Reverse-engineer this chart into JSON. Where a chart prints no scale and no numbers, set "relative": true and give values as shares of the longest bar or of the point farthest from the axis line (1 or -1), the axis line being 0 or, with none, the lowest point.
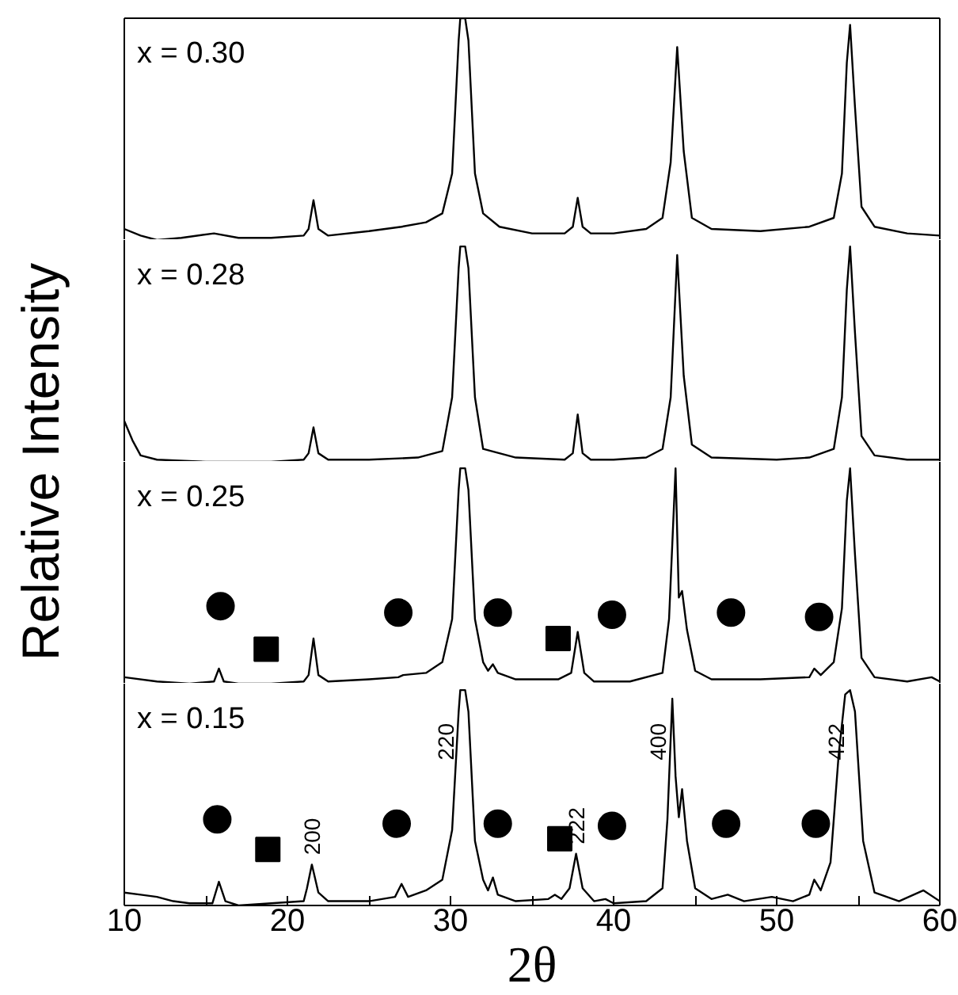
{
  "chart_data": [
    {
      "type": "line",
      "title": "x = 0.30",
      "relative": true,
      "xlim": [
        10,
        60
      ],
      "tick_labels": false,
      "series": [
        {
          "type": "line",
          "color": "#000000",
          "x": [
            10,
            11,
            12,
            13.5,
            15.5,
            17,
            19,
            21,
            21.3,
            21.6,
            21.9,
            22.5,
            25,
            27,
            28.5,
            29.5,
            30.1,
            30.5,
            30.6,
            30.9,
            31.1,
            31.5,
            32,
            33,
            35,
            37,
            37.5,
            37.8,
            38.1,
            38.6,
            40,
            42,
            43,
            43.5,
            43.9,
            44.3,
            44.8,
            46,
            49,
            52,
            53.5,
            54,
            54.3,
            54.5,
            54.8,
            55.2,
            56,
            58,
            60
          ],
          "values": [
            0.05,
            0.02,
            0,
            0.01,
            0.03,
            0.01,
            0.01,
            0.02,
            0.05,
            0.18,
            0.05,
            0.02,
            0.04,
            0.06,
            0.08,
            0.12,
            0.3,
            0.9,
            1,
            1,
            0.9,
            0.3,
            0.12,
            0.06,
            0.03,
            0.03,
            0.06,
            0.19,
            0.06,
            0.03,
            0.03,
            0.05,
            0.1,
            0.35,
            0.87,
            0.4,
            0.1,
            0.05,
            0.04,
            0.06,
            0.1,
            0.3,
            0.8,
            0.97,
            0.6,
            0.15,
            0.06,
            0.03,
            0.02
          ]
        }
      ]
    },
    {
      "type": "line",
      "title": "x = 0.28",
      "relative": true,
      "xlim": [
        10,
        60
      ],
      "tick_labels": false,
      "series": [
        {
          "type": "line",
          "color": "#000000",
          "x": [
            10,
            10.5,
            11,
            12,
            15,
            19,
            21,
            21.3,
            21.6,
            21.9,
            22.5,
            25,
            28,
            29.5,
            30.1,
            30.5,
            30.6,
            30.9,
            31.1,
            31.5,
            32,
            34,
            37,
            37.5,
            37.8,
            38.1,
            38.6,
            40,
            42,
            43,
            43.5,
            43.9,
            44.3,
            44.8,
            46,
            50,
            52,
            53.5,
            54,
            54.3,
            54.5,
            54.8,
            55.2,
            56,
            58,
            60
          ],
          "values": [
            0.19,
            0.1,
            0.03,
            0.01,
            0,
            0,
            0.01,
            0.04,
            0.16,
            0.04,
            0.01,
            0.01,
            0.02,
            0.05,
            0.3,
            0.9,
            1,
            1,
            0.9,
            0.3,
            0.06,
            0.02,
            0.01,
            0.04,
            0.22,
            0.04,
            0.01,
            0.01,
            0.02,
            0.06,
            0.3,
            0.96,
            0.4,
            0.08,
            0.02,
            0.01,
            0.02,
            0.06,
            0.3,
            0.8,
            1,
            0.6,
            0.12,
            0.03,
            0.01,
            0.01
          ]
        }
      ]
    },
    {
      "type": "line",
      "title": "x = 0.25",
      "relative": true,
      "xlim": [
        10,
        60
      ],
      "tick_labels": false,
      "series": [
        {
          "type": "line",
          "color": "#000000",
          "x": [
            10,
            12,
            14,
            15.5,
            15.8,
            16.1,
            17,
            19,
            21,
            21.3,
            21.6,
            21.9,
            22.5,
            25,
            26.8,
            27.1,
            28.5,
            29.5,
            30.1,
            30.5,
            30.6,
            30.9,
            31.1,
            31.5,
            32,
            32.3,
            32.6,
            32.9,
            34,
            36.6,
            37.4,
            37.8,
            38.2,
            38.8,
            41,
            43,
            43.4,
            43.8,
            44.0,
            44.2,
            44.5,
            45,
            46,
            49,
            52,
            52.3,
            52.7,
            53.5,
            54,
            54.3,
            54.5,
            54.8,
            55.2,
            56,
            58,
            59.5,
            60
          ],
          "values": [
            0.03,
            0.01,
            0,
            0.01,
            0.07,
            0.01,
            0,
            0,
            0.01,
            0.04,
            0.21,
            0.04,
            0.01,
            0.02,
            0.03,
            0.04,
            0.05,
            0.1,
            0.3,
            0.9,
            1,
            1,
            0.9,
            0.3,
            0.1,
            0.06,
            0.09,
            0.05,
            0.02,
            0.02,
            0.05,
            0.24,
            0.05,
            0.01,
            0.01,
            0.05,
            0.3,
            1,
            0.4,
            0.43,
            0.25,
            0.06,
            0.02,
            0.02,
            0.03,
            0.07,
            0.04,
            0.1,
            0.35,
            0.85,
            1,
            0.6,
            0.12,
            0.03,
            0.01,
            0.03,
            0.01
          ]
        },
        {
          "type": "scatter",
          "marker": "circle",
          "color": "#000000",
          "x": [
            15.9,
            26.8,
            32.9,
            39.9,
            47.2,
            52.6
          ],
          "values": [
            0.36,
            0.33,
            0.33,
            0.32,
            0.33,
            0.31
          ]
        },
        {
          "type": "scatter",
          "marker": "square",
          "color": "#000000",
          "x": [
            18.7,
            36.6
          ],
          "values": [
            0.16,
            0.21
          ]
        }
      ]
    },
    {
      "type": "line",
      "title": "x = 0.15",
      "relative": true,
      "xlabel": "2θ",
      "ylabel": "Relative Intensity",
      "xlim": [
        10,
        60
      ],
      "xticks": [
        10,
        {
          "value": 15,
          "label": null
        },
        20,
        {
          "value": 25,
          "label": null
        },
        30,
        {
          "value": 35,
          "label": null
        },
        40,
        {
          "value": 45,
          "label": null
        },
        50,
        {
          "value": 55,
          "label": null
        },
        60
      ],
      "tick_labels": "x",
      "annotations": [
        {
          "text": "200",
          "x": 21.5,
          "y": 0.19
        },
        {
          "text": "220",
          "x": 30.6,
          "y": 1
        },
        {
          "text": "222",
          "x": 37.7,
          "y": 0.24
        },
        {
          "text": "400",
          "x": 43.6,
          "y": 0.96
        },
        {
          "text": "422",
          "x": 54.5,
          "y": 1
        }
      ],
      "series": [
        {
          "type": "line",
          "color": "#000000",
          "x": [
            10,
            11,
            12,
            13,
            14,
            15.4,
            15.8,
            16.2,
            17,
            19,
            21,
            21.2,
            21.5,
            21.9,
            22.5,
            25,
            26.6,
            27,
            27.4,
            28.5,
            29.5,
            30.1,
            30.5,
            30.6,
            30.9,
            31.1,
            31.5,
            32,
            32.3,
            32.6,
            32.9,
            34,
            36,
            36.4,
            36.8,
            37.3,
            37.7,
            38.1,
            38.8,
            39.5,
            40,
            42,
            43,
            43.3,
            43.6,
            43.8,
            44.0,
            44.2,
            44.5,
            45,
            46,
            47,
            48,
            49.7,
            51,
            52,
            52.3,
            52.7,
            53.3,
            53.8,
            54.2,
            54.5,
            54.8,
            55.3,
            56,
            57.5,
            59,
            60
          ],
          "values": [
            0.06,
            0.05,
            0.04,
            0.02,
            0.01,
            0.01,
            0.11,
            0.02,
            0,
            0.01,
            0.02,
            0.08,
            0.19,
            0.06,
            0.02,
            0.02,
            0.04,
            0.1,
            0.04,
            0.07,
            0.12,
            0.35,
            0.9,
            1,
            1,
            0.9,
            0.3,
            0.12,
            0.07,
            0.13,
            0.05,
            0.02,
            0.03,
            0.05,
            0.03,
            0.08,
            0.24,
            0.08,
            0.02,
            0.03,
            0.01,
            0.02,
            0.08,
            0.4,
            0.96,
            0.6,
            0.41,
            0.54,
            0.3,
            0.08,
            0.03,
            0.05,
            0.02,
            0.04,
            0.02,
            0.05,
            0.12,
            0.07,
            0.2,
            0.7,
            0.98,
            1,
            0.9,
            0.3,
            0.06,
            0.02,
            0.07,
            0.02
          ]
        },
        {
          "type": "scatter",
          "marker": "circle",
          "color": "#000000",
          "x": [
            15.7,
            26.7,
            32.9,
            39.9,
            46.9,
            52.4
          ],
          "values": [
            0.4,
            0.38,
            0.38,
            0.37,
            0.38,
            0.38
          ]
        },
        {
          "type": "scatter",
          "marker": "square",
          "color": "#000000",
          "x": [
            18.8,
            36.7
          ],
          "values": [
            0.26,
            0.31
          ]
        }
      ]
    }
  ]
}
